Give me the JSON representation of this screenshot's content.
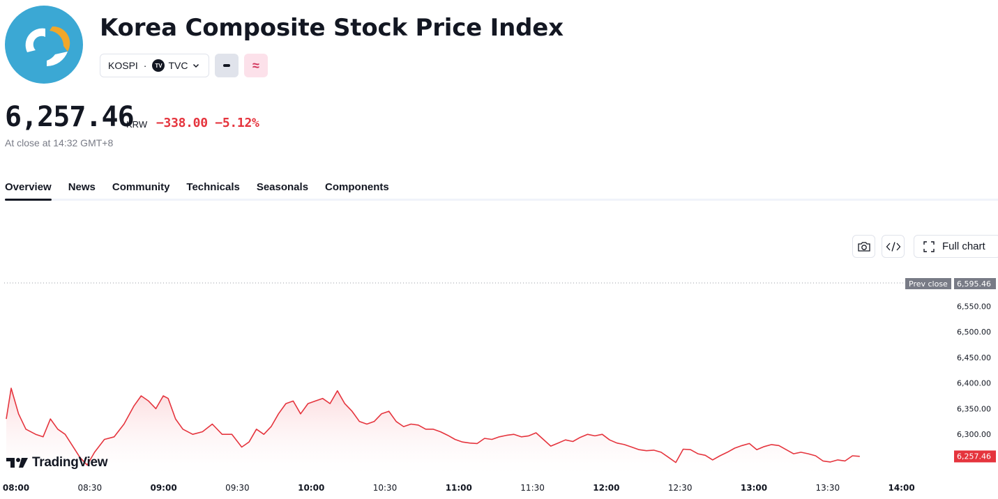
{
  "header": {
    "title": "Korea Composite Stock Price Index",
    "logo_icon": "kospi-logo-icon",
    "symbol": "KOSPI",
    "separator": "·",
    "exchange": "TVC",
    "exchange_badge": "TV",
    "buttons": {
      "minus_icon": "minus-icon",
      "approx_label": "≈"
    }
  },
  "quote": {
    "price": "6,257.46",
    "currency": "KRW",
    "change": "−338.00",
    "change_percent": "−5.12%",
    "status": "At close at 14:32 GMT+8"
  },
  "tabs": [
    {
      "label": "Overview",
      "active": true
    },
    {
      "label": "News"
    },
    {
      "label": "Community"
    },
    {
      "label": "Technicals"
    },
    {
      "label": "Seasonals"
    },
    {
      "label": "Components"
    }
  ],
  "toolbar": {
    "full_chart_label": "Full chart"
  },
  "brand": "TradingView",
  "colors": {
    "line": "#e5343d",
    "fill_top": "#fbd3d6",
    "prev_close_bg": "#787b86",
    "price_tag_bg": "#e5343d"
  },
  "chart_data": {
    "type": "area",
    "y_ticks": [
      6300,
      6350,
      6400,
      6450,
      6500,
      6550
    ],
    "y_tick_labels": [
      "6,300.00",
      "6,350.00",
      "6,400.00",
      "6,450.00",
      "6,500.00",
      "6,550.00"
    ],
    "x_labels": [
      "08:00",
      "08:30",
      "09:00",
      "09:30",
      "10:00",
      "10:30",
      "11:00",
      "11:30",
      "12:00",
      "12:30",
      "13:00",
      "13:30",
      "14:00"
    ],
    "prev_close": {
      "label": "Prev close",
      "value": 6595.46,
      "value_label": "6,595.46"
    },
    "last": {
      "value": 6257.46,
      "value_label": "6,257.46"
    },
    "series": [
      {
        "values": [
          [
            0,
            6330
          ],
          [
            2,
            6390
          ],
          [
            5,
            6340
          ],
          [
            8,
            6310
          ],
          [
            12,
            6300
          ],
          [
            15,
            6295
          ],
          [
            18,
            6330
          ],
          [
            21,
            6310
          ],
          [
            24,
            6300
          ],
          [
            28,
            6270
          ],
          [
            30,
            6255
          ],
          [
            33,
            6240
          ],
          [
            36,
            6265
          ],
          [
            40,
            6290
          ],
          [
            44,
            6295
          ],
          [
            48,
            6320
          ],
          [
            52,
            6355
          ],
          [
            55,
            6375
          ],
          [
            58,
            6365
          ],
          [
            61,
            6350
          ],
          [
            64,
            6375
          ],
          [
            66,
            6370
          ],
          [
            69,
            6330
          ],
          [
            72,
            6310
          ],
          [
            76,
            6300
          ],
          [
            80,
            6305
          ],
          [
            84,
            6320
          ],
          [
            88,
            6300
          ],
          [
            92,
            6300
          ],
          [
            96,
            6275
          ],
          [
            99,
            6285
          ],
          [
            102,
            6310
          ],
          [
            105,
            6300
          ],
          [
            108,
            6315
          ],
          [
            111,
            6340
          ],
          [
            114,
            6360
          ],
          [
            117,
            6365
          ],
          [
            120,
            6340
          ],
          [
            123,
            6360
          ],
          [
            126,
            6365
          ],
          [
            129,
            6370
          ],
          [
            132,
            6360
          ],
          [
            135,
            6385
          ],
          [
            138,
            6360
          ],
          [
            141,
            6345
          ],
          [
            144,
            6325
          ],
          [
            147,
            6320
          ],
          [
            150,
            6325
          ],
          [
            153,
            6340
          ],
          [
            156,
            6345
          ],
          [
            159,
            6325
          ],
          [
            162,
            6315
          ],
          [
            165,
            6320
          ],
          [
            168,
            6318
          ],
          [
            171,
            6310
          ],
          [
            174,
            6310
          ],
          [
            177,
            6305
          ],
          [
            180,
            6298
          ],
          [
            183,
            6290
          ],
          [
            186,
            6285
          ],
          [
            189,
            6283
          ],
          [
            192,
            6282
          ],
          [
            195,
            6292
          ],
          [
            198,
            6290
          ],
          [
            201,
            6295
          ],
          [
            204,
            6298
          ],
          [
            207,
            6300
          ],
          [
            210,
            6295
          ],
          [
            213,
            6297
          ],
          [
            216,
            6303
          ],
          [
            219,
            6290
          ],
          [
            222,
            6277
          ],
          [
            225,
            6283
          ],
          [
            228,
            6289
          ],
          [
            231,
            6286
          ],
          [
            234,
            6294
          ],
          [
            237,
            6300
          ],
          [
            240,
            6297
          ],
          [
            243,
            6300
          ],
          [
            246,
            6289
          ],
          [
            249,
            6283
          ],
          [
            252,
            6280
          ],
          [
            255,
            6275
          ],
          [
            258,
            6270
          ],
          [
            261,
            6268
          ],
          [
            264,
            6269
          ],
          [
            267,
            6265
          ],
          [
            270,
            6255
          ],
          [
            273,
            6245
          ],
          [
            276,
            6271
          ],
          [
            279,
            6270
          ],
          [
            282,
            6262
          ],
          [
            285,
            6259
          ],
          [
            288,
            6250
          ],
          [
            291,
            6258
          ],
          [
            294,
            6265
          ],
          [
            297,
            6273
          ],
          [
            300,
            6278
          ],
          [
            303,
            6282
          ],
          [
            306,
            6270
          ],
          [
            309,
            6276
          ],
          [
            312,
            6280
          ],
          [
            315,
            6278
          ],
          [
            318,
            6270
          ],
          [
            321,
            6262
          ],
          [
            324,
            6265
          ],
          [
            327,
            6262
          ],
          [
            330,
            6258
          ],
          [
            333,
            6248
          ],
          [
            336,
            6246
          ],
          [
            339,
            6250
          ],
          [
            342,
            6248
          ],
          [
            345,
            6258
          ],
          [
            348,
            6257
          ]
        ]
      }
    ]
  }
}
